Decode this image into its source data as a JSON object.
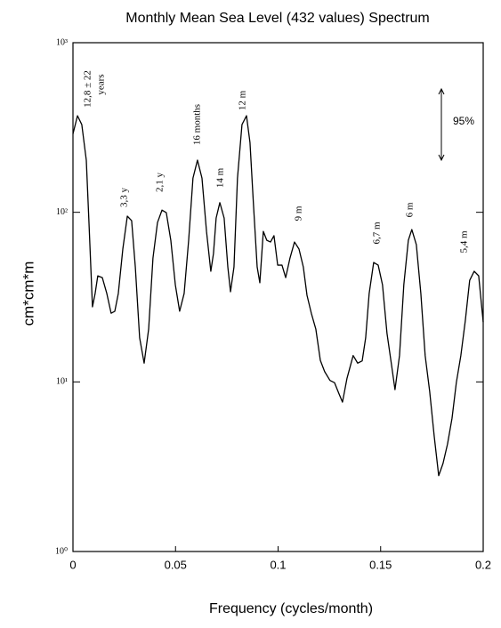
{
  "chart_data": {
    "type": "line",
    "title": "Monthly Mean Sea Level (432 values) Spectrum",
    "x_label": "Frequency (cycles/month)",
    "y_label": "cm*cm*m",
    "log_y": true,
    "color": "#000000",
    "xlim": [
      0,
      0.2
    ],
    "xticks": [
      0,
      0.05,
      0.1,
      0.15,
      0.2
    ],
    "ylim": [
      1,
      1000
    ],
    "yticks": [
      {
        "value": 1,
        "label": "10⁰"
      },
      {
        "value": 10,
        "label": "10¹"
      },
      {
        "value": 100,
        "label": "10²"
      },
      {
        "value": 1000,
        "label": "10³"
      }
    ],
    "x": [
      0,
      0.0022,
      0.0043,
      0.0065,
      0.0078,
      0.0095,
      0.0108,
      0.0121,
      0.0143,
      0.0165,
      0.0186,
      0.0204,
      0.0221,
      0.0243,
      0.0265,
      0.0286,
      0.0304,
      0.0325,
      0.0347,
      0.0369,
      0.039,
      0.0412,
      0.0434,
      0.0455,
      0.0477,
      0.0499,
      0.052,
      0.0542,
      0.0564,
      0.0585,
      0.0607,
      0.0629,
      0.0651,
      0.0672,
      0.0685,
      0.0698,
      0.0716,
      0.0737,
      0.0755,
      0.0768,
      0.0785,
      0.0802,
      0.0824,
      0.0846,
      0.0863,
      0.088,
      0.0898,
      0.0911,
      0.0928,
      0.0945,
      0.0963,
      0.098,
      0.0998,
      0.1019,
      0.1037,
      0.1058,
      0.108,
      0.1102,
      0.1123,
      0.1141,
      0.1162,
      0.1184,
      0.1206,
      0.1227,
      0.1253,
      0.1275,
      0.1297,
      0.1314,
      0.1336,
      0.1366,
      0.1388,
      0.141,
      0.1427,
      0.1444,
      0.1466,
      0.1488,
      0.1509,
      0.1531,
      0.1553,
      0.157,
      0.1592,
      0.1613,
      0.1635,
      0.1652,
      0.1674,
      0.1696,
      0.1717,
      0.1739,
      0.1761,
      0.1783,
      0.1804,
      0.1826,
      0.1848,
      0.1869,
      0.1891,
      0.1913,
      0.1934,
      0.1956,
      0.1978,
      0.2
    ],
    "values": [
      290,
      371,
      329,
      203,
      87,
      27.7,
      33.2,
      42.2,
      41.2,
      33.2,
      25.4,
      26.1,
      33.2,
      60.7,
      94.9,
      89.3,
      47.6,
      18.2,
      12.9,
      20.5,
      53.7,
      87,
      103,
      99.5,
      68.4,
      37.4,
      26.1,
      33.2,
      68.4,
      159,
      203,
      159,
      77.2,
      44.9,
      57.1,
      92.5,
      114,
      92.5,
      47.6,
      34,
      47.6,
      159,
      329,
      371,
      258,
      111,
      47.6,
      38.4,
      77.2,
      68.4,
      66.8,
      72.8,
      48.8,
      48.8,
      41.2,
      53.7,
      66.8,
      60.7,
      47.6,
      32.4,
      25.4,
      20.5,
      13.4,
      11.5,
      10.2,
      9.9,
      8.5,
      7.6,
      10.5,
      14.3,
      12.9,
      13.3,
      18.2,
      33.2,
      50.6,
      48.8,
      37.4,
      19.3,
      12.6,
      9,
      14.3,
      37.4,
      68.4,
      79.1,
      64.4,
      33.2,
      14.3,
      8.8,
      4.8,
      2.8,
      3.3,
      4.3,
      6.1,
      9.9,
      14.3,
      23.1,
      39.7,
      44.9,
      42.2,
      22.5
    ],
    "annotations": [
      "12,8 ± 22",
      "years",
      "3,3 y",
      "2,1 y",
      "16  months",
      "14 m",
      "12 m",
      "9 m",
      "6,7 m",
      "6 m",
      "5,4 m",
      "95%"
    ]
  }
}
